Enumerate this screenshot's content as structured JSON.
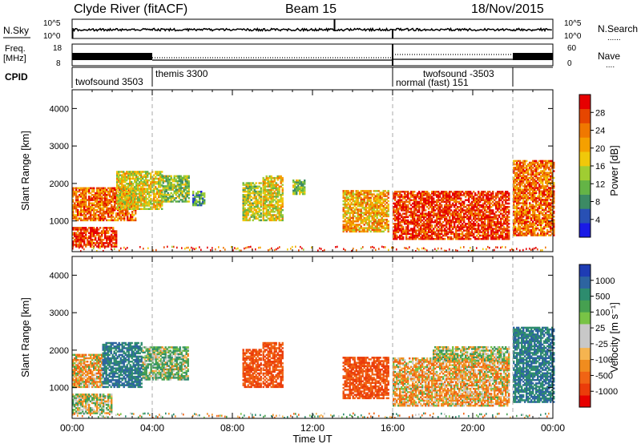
{
  "header": {
    "station": "Clyde River (fitACF)",
    "beam": "Beam 15",
    "date": "18/Nov/2015"
  },
  "noise_panel": {
    "left_label": "N.Sky",
    "right_label": "N.Search",
    "right_legend": "......",
    "ticks_left": [
      "10^5",
      "10^0"
    ],
    "ticks_right": [
      "10^5",
      "10^0"
    ]
  },
  "freq_panel": {
    "left_label_1": "Freq.",
    "left_label_2": "[MHz]",
    "right_label": "Nave",
    "right_legend": "....",
    "ticks_left": [
      "18",
      "8"
    ],
    "ticks_right": [
      "60",
      "0"
    ]
  },
  "cpid_panel": {
    "label": "CPID",
    "segments": [
      {
        "name": "twofsound 3503",
        "start": 0,
        "end": 4
      },
      {
        "name": "themis 3300",
        "start": 4,
        "end": 16
      },
      {
        "name": "normal (fast) 151",
        "start": 16,
        "end": 22
      },
      {
        "name": "twofsound -3503",
        "start": 16,
        "end": 22
      }
    ]
  },
  "axes": {
    "ylabel": "Slant Range [km]",
    "xlabel": "Time UT",
    "x_ticks": [
      "00:00",
      "04:00",
      "08:00",
      "12:00",
      "16:00",
      "20:00",
      "00:00"
    ],
    "y_ticks": [
      "1000",
      "2000",
      "3000",
      "4000"
    ],
    "xlim": [
      0,
      24
    ],
    "ylim": [
      180,
      4500
    ],
    "mode_change_hours": [
      4,
      16,
      22
    ]
  },
  "power_colorbar": {
    "label": "Power [dB]",
    "ticks": [
      "4",
      "8",
      "12",
      "16",
      "20",
      "24",
      "28"
    ],
    "colors": [
      "#1a1ae6",
      "#2850b4",
      "#3c8a64",
      "#64b446",
      "#a0cd32",
      "#f0c80a",
      "#f5a000",
      "#f07800",
      "#e64600",
      "#e60000"
    ]
  },
  "velocity_colorbar": {
    "label": "Velocity [m s⁻¹]",
    "ticks": [
      "1000",
      "500",
      "100",
      "25",
      "-25",
      "-100",
      "-500",
      "-1000"
    ],
    "colors": [
      "#1e3cb4",
      "#2d64a0",
      "#2d8c6e",
      "#46a050",
      "#78c346",
      "#c8c8c8",
      "#c8c8c8",
      "#f5b450",
      "#f08c1e",
      "#f06414",
      "#eb3c0a",
      "#e60000"
    ]
  },
  "chart_data": [
    {
      "type": "heatmap",
      "name": "Power",
      "xlabel": "Time UT",
      "ylabel": "Slant Range [km]",
      "xlim": [
        0,
        24
      ],
      "ylim": [
        180,
        4500
      ],
      "regions": [
        {
          "t": [
            0.0,
            2.2
          ],
          "r": [
            300,
            800
          ],
          "value": 28
        },
        {
          "t": [
            0.0,
            3.2
          ],
          "r": [
            1000,
            1900
          ],
          "value": 24
        },
        {
          "t": [
            2.2,
            4.5
          ],
          "r": [
            1300,
            2300
          ],
          "value": 16
        },
        {
          "t": [
            4.5,
            5.8
          ],
          "r": [
            1500,
            2200
          ],
          "value": 12
        },
        {
          "t": [
            6.0,
            6.6
          ],
          "r": [
            1400,
            1800
          ],
          "value": 8
        },
        {
          "t": [
            8.5,
            9.4
          ],
          "r": [
            1000,
            2000
          ],
          "value": 14
        },
        {
          "t": [
            9.5,
            10.5
          ],
          "r": [
            1000,
            2200
          ],
          "value": 16
        },
        {
          "t": [
            11.0,
            11.6
          ],
          "r": [
            1700,
            2100
          ],
          "value": 12
        },
        {
          "t": [
            13.5,
            15.8
          ],
          "r": [
            700,
            1800
          ],
          "value": 20
        },
        {
          "t": [
            16.0,
            21.8
          ],
          "r": [
            500,
            1800
          ],
          "value": 28
        },
        {
          "t": [
            22.0,
            24.0
          ],
          "r": [
            600,
            2600
          ],
          "value": 24
        }
      ]
    },
    {
      "type": "heatmap",
      "name": "Velocity",
      "xlabel": "Time UT",
      "ylabel": "Slant Range [km]",
      "xlim": [
        0,
        24
      ],
      "ylim": [
        180,
        4500
      ],
      "regions": [
        {
          "t": [
            0.0,
            2.0
          ],
          "r": [
            300,
            800
          ],
          "value": 25
        },
        {
          "t": [
            0.0,
            1.5
          ],
          "r": [
            1000,
            1900
          ],
          "value": -100
        },
        {
          "t": [
            1.5,
            3.5
          ],
          "r": [
            1000,
            2200
          ],
          "value": 500
        },
        {
          "t": [
            3.5,
            5.8
          ],
          "r": [
            1200,
            2100
          ],
          "value": 100
        },
        {
          "t": [
            8.5,
            9.4
          ],
          "r": [
            1000,
            2000
          ],
          "value": -500
        },
        {
          "t": [
            9.5,
            10.5
          ],
          "r": [
            1000,
            2200
          ],
          "value": -500
        },
        {
          "t": [
            13.5,
            15.8
          ],
          "r": [
            700,
            1800
          ],
          "value": -500
        },
        {
          "t": [
            16.0,
            21.8
          ],
          "r": [
            500,
            1800
          ],
          "value": -100
        },
        {
          "t": [
            18.0,
            21.8
          ],
          "r": [
            1700,
            2100
          ],
          "value": 25
        },
        {
          "t": [
            22.0,
            24.0
          ],
          "r": [
            600,
            2600
          ],
          "value": 500
        }
      ]
    }
  ]
}
